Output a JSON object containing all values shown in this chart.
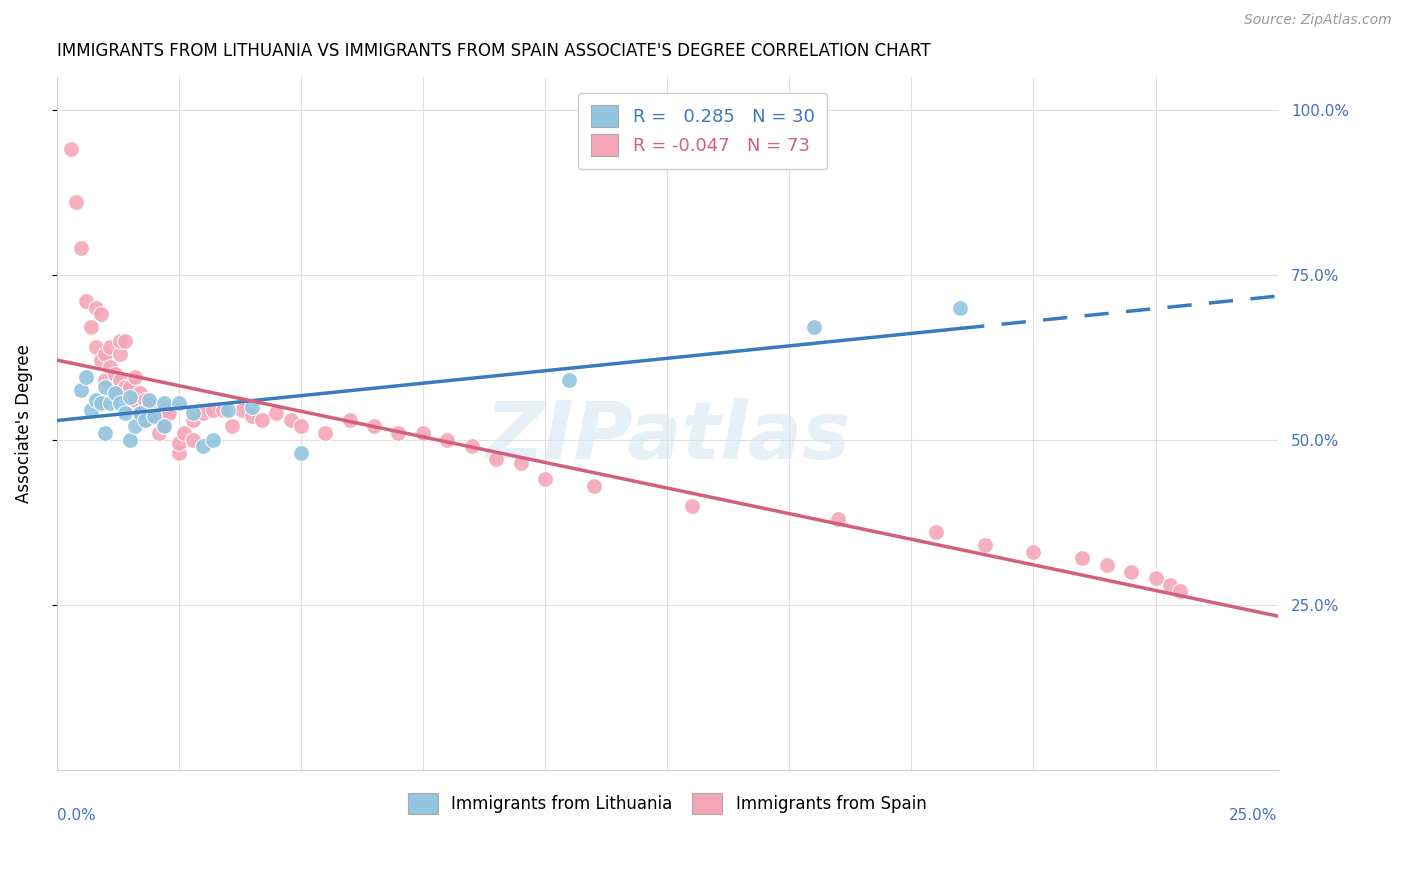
{
  "title": "IMMIGRANTS FROM LITHUANIA VS IMMIGRANTS FROM SPAIN ASSOCIATE'S DEGREE CORRELATION CHART",
  "source": "Source: ZipAtlas.com",
  "ylabel": "Associate's Degree",
  "ylabel_right_ticks": [
    "25.0%",
    "50.0%",
    "75.0%",
    "100.0%"
  ],
  "ylabel_right_vals": [
    0.25,
    0.5,
    0.75,
    1.0
  ],
  "legend_blue_label": "R =   0.285   N = 30",
  "legend_pink_label": "R = -0.047   N = 73",
  "blue_color": "#92c5de",
  "pink_color": "#f4a6b8",
  "blue_line_color": "#3a7abf",
  "pink_line_color": "#d45f7a",
  "watermark": "ZIPatlas",
  "blue_scatter_x": [
    0.005,
    0.006,
    0.007,
    0.008,
    0.009,
    0.01,
    0.01,
    0.011,
    0.012,
    0.013,
    0.014,
    0.015,
    0.015,
    0.016,
    0.017,
    0.018,
    0.019,
    0.02,
    0.022,
    0.022,
    0.025,
    0.028,
    0.03,
    0.032,
    0.035,
    0.04,
    0.05,
    0.105,
    0.155,
    0.185
  ],
  "blue_scatter_y": [
    0.575,
    0.595,
    0.545,
    0.56,
    0.555,
    0.58,
    0.51,
    0.555,
    0.57,
    0.555,
    0.54,
    0.565,
    0.5,
    0.52,
    0.54,
    0.53,
    0.56,
    0.535,
    0.555,
    0.52,
    0.555,
    0.54,
    0.49,
    0.5,
    0.545,
    0.55,
    0.48,
    0.59,
    0.67,
    0.7
  ],
  "pink_scatter_x": [
    0.003,
    0.004,
    0.005,
    0.006,
    0.007,
    0.008,
    0.008,
    0.009,
    0.009,
    0.01,
    0.01,
    0.011,
    0.011,
    0.012,
    0.012,
    0.013,
    0.013,
    0.013,
    0.014,
    0.014,
    0.015,
    0.015,
    0.016,
    0.016,
    0.017,
    0.017,
    0.018,
    0.018,
    0.019,
    0.019,
    0.02,
    0.02,
    0.021,
    0.022,
    0.022,
    0.023,
    0.025,
    0.025,
    0.026,
    0.028,
    0.028,
    0.03,
    0.032,
    0.034,
    0.036,
    0.038,
    0.04,
    0.042,
    0.045,
    0.048,
    0.05,
    0.055,
    0.06,
    0.065,
    0.07,
    0.075,
    0.08,
    0.085,
    0.09,
    0.095,
    0.1,
    0.11,
    0.13,
    0.16,
    0.18,
    0.19,
    0.2,
    0.21,
    0.215,
    0.22,
    0.225,
    0.228,
    0.23
  ],
  "pink_scatter_y": [
    0.94,
    0.86,
    0.79,
    0.71,
    0.67,
    0.7,
    0.64,
    0.69,
    0.62,
    0.63,
    0.59,
    0.61,
    0.64,
    0.57,
    0.6,
    0.59,
    0.63,
    0.65,
    0.58,
    0.65,
    0.55,
    0.58,
    0.56,
    0.595,
    0.54,
    0.57,
    0.53,
    0.56,
    0.545,
    0.555,
    0.54,
    0.535,
    0.51,
    0.52,
    0.545,
    0.54,
    0.48,
    0.495,
    0.51,
    0.5,
    0.53,
    0.54,
    0.545,
    0.545,
    0.52,
    0.545,
    0.535,
    0.53,
    0.54,
    0.53,
    0.52,
    0.51,
    0.53,
    0.52,
    0.51,
    0.51,
    0.5,
    0.49,
    0.47,
    0.465,
    0.44,
    0.43,
    0.4,
    0.38,
    0.36,
    0.34,
    0.33,
    0.32,
    0.31,
    0.3,
    0.29,
    0.28,
    0.27
  ],
  "xmin": 0.0,
  "xmax": 0.25,
  "ymin": 0.0,
  "ymax": 1.05,
  "ytick_positions": [
    0.25,
    0.5,
    0.75,
    1.0
  ],
  "xtick_count": 11,
  "grid_color": "#e0e0e0",
  "background_color": "#ffffff"
}
